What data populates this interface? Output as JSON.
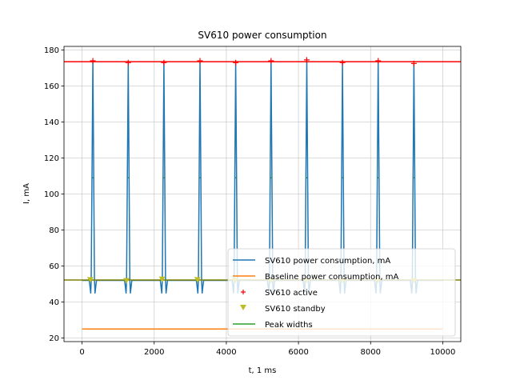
{
  "chart_data": {
    "type": "line",
    "title": "SV610 power consumption",
    "xlabel": "t, 1 ms",
    "ylabel": "I, mA",
    "xlim": [
      -500,
      10500
    ],
    "ylim": [
      18,
      182
    ],
    "xticks": [
      0,
      2000,
      4000,
      6000,
      8000,
      10000
    ],
    "yticks": [
      20,
      40,
      60,
      80,
      100,
      120,
      140,
      160,
      180
    ],
    "grid": true,
    "legend_position": "lower-right",
    "colors": {
      "consumption": "#1f77b4",
      "baseline": "#ff7f0e",
      "active": "#ff0000",
      "standby": "#bcbd22",
      "widths": "#2ca02c",
      "hline_active": "#ff0000",
      "hline_standby": "#808000"
    },
    "series": [
      {
        "name": "SV610 power consumption, mA",
        "kind": "line",
        "color": "#1f77b4"
      },
      {
        "name": "Baseline power consumption, mA",
        "kind": "line",
        "color": "#ff7f0e"
      },
      {
        "name": "SV610 active",
        "kind": "marker-plus",
        "color": "#ff0000"
      },
      {
        "name": "SV610 standby",
        "kind": "marker-triangle",
        "color": "#bcbd22"
      },
      {
        "name": "Peak widths",
        "kind": "line",
        "color": "#2ca02c"
      }
    ],
    "consumption_baseline_level": 52,
    "consumption_dip_level": 45,
    "baseline_level": 25,
    "baseline_x_range": [
      0,
      10000
    ],
    "active_threshold": 173.5,
    "standby_threshold": 52.2,
    "peak_x": [
      300,
      1280,
      2270,
      3270,
      4260,
      5240,
      6230,
      7220,
      8210,
      9200
    ],
    "peak_y": [
      174,
      173,
      173,
      174,
      173,
      174,
      174.5,
      173,
      174,
      172.5
    ],
    "peak_half_width": 60,
    "peak_width_height": 109,
    "standby_x": [
      230,
      1230,
      2220,
      3200,
      4240,
      5240,
      6230,
      7220,
      8200,
      9200
    ],
    "standby_y": [
      52.5,
      52,
      52.8,
      52.5,
      52,
      52,
      52,
      52,
      52,
      52
    ]
  }
}
